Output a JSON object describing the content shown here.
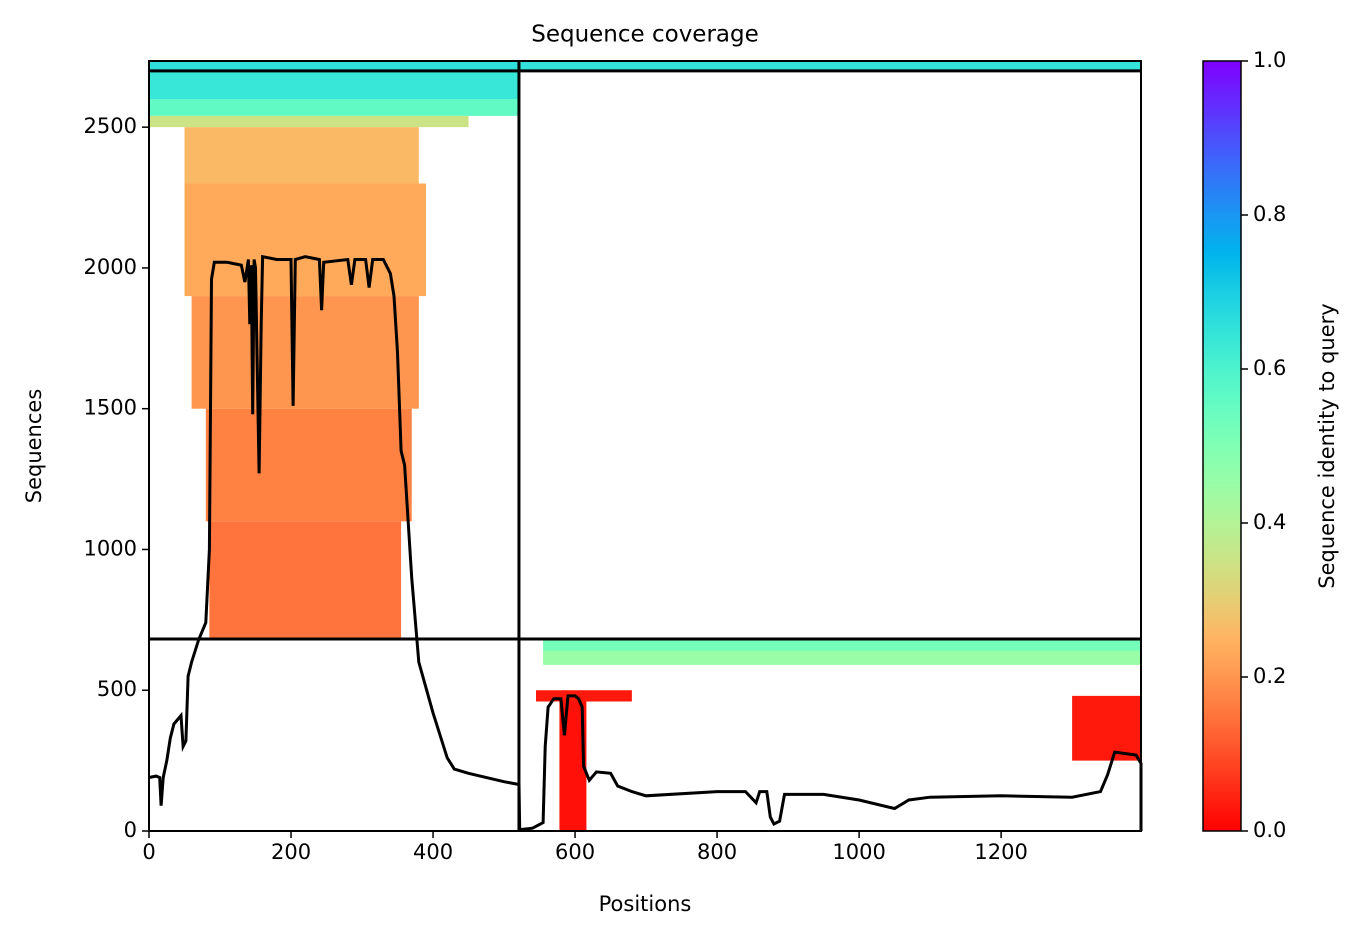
{
  "chart_data": {
    "type": "coverage",
    "title": "Sequence coverage",
    "xlabel": "Positions",
    "ylabel": "Sequences",
    "colorbar_label": "Sequence identity to query",
    "colormap": "rainbow_r",
    "xlim": [
      0,
      1397
    ],
    "ylim": [
      0,
      2735
    ],
    "xticks": [
      0,
      200,
      400,
      600,
      800,
      1000,
      1200
    ],
    "yticks": [
      0,
      500,
      1000,
      1500,
      2000,
      2500
    ],
    "clim": [
      0,
      1
    ],
    "cticks": [
      {
        "value": 0,
        "label": "0.0"
      },
      {
        "value": 0.2,
        "label": "0.2"
      },
      {
        "value": 0.4,
        "label": "0.4"
      },
      {
        "value": 0.6,
        "label": "0.6"
      },
      {
        "value": 0.8,
        "label": "0.8"
      },
      {
        "value": 1,
        "label": "1.0"
      }
    ],
    "boundaries_x": [
      521
    ],
    "boundaries_y": [
      682,
      2700
    ],
    "blocks": [
      {
        "x": [
          0,
          521
        ],
        "y": [
          2600,
          2700
        ],
        "identity": 0.64
      },
      {
        "x": [
          0,
          521
        ],
        "y": [
          2540,
          2600
        ],
        "identity": 0.56
      },
      {
        "x": [
          0,
          450
        ],
        "y": [
          2500,
          2540
        ],
        "identity": 0.35
      },
      {
        "x": [
          521,
          1397
        ],
        "y": [
          2700,
          2735
        ],
        "identity": 0.65
      },
      {
        "x": [
          0,
          521
        ],
        "y": [
          2700,
          2735
        ],
        "identity": 0.66
      },
      {
        "x": [
          50,
          380
        ],
        "y": [
          2300,
          2500
        ],
        "identity": 0.26
      },
      {
        "x": [
          50,
          390
        ],
        "y": [
          1900,
          2300
        ],
        "identity": 0.23
      },
      {
        "x": [
          60,
          380
        ],
        "y": [
          1500,
          1900
        ],
        "identity": 0.2
      },
      {
        "x": [
          80,
          370
        ],
        "y": [
          1100,
          1500
        ],
        "identity": 0.17
      },
      {
        "x": [
          85,
          355
        ],
        "y": [
          682,
          1100
        ],
        "identity": 0.15
      },
      {
        "x": [
          555,
          1397
        ],
        "y": [
          590,
          682
        ],
        "identity": 0.45
      },
      {
        "x": [
          555,
          1397
        ],
        "y": [
          640,
          682
        ],
        "identity": 0.52
      },
      {
        "x": [
          545,
          680
        ],
        "y": [
          460,
          500
        ],
        "identity": 0.03
      },
      {
        "x": [
          578,
          616
        ],
        "y": [
          0,
          460
        ],
        "identity": 0.02
      },
      {
        "x": [
          1300,
          1397
        ],
        "y": [
          250,
          480
        ],
        "identity": 0.03
      }
    ],
    "x": [
      0,
      10,
      15,
      17,
      20,
      25,
      30,
      35,
      45,
      48,
      52,
      55,
      60,
      70,
      80,
      85,
      88,
      92,
      110,
      130,
      135,
      140,
      142,
      144,
      146,
      148,
      150,
      155,
      158,
      160,
      180,
      200,
      203,
      206,
      220,
      240,
      243,
      246,
      280,
      285,
      290,
      305,
      310,
      315,
      330,
      340,
      345,
      350,
      355,
      360,
      370,
      380,
      400,
      420,
      430,
      450,
      500,
      521,
      522,
      540,
      555,
      558,
      562,
      570,
      580,
      585,
      590,
      600,
      605,
      610,
      612,
      620,
      630,
      650,
      660,
      680,
      700,
      800,
      840,
      855,
      860,
      870,
      875,
      880,
      888,
      895,
      950,
      1000,
      1050,
      1070,
      1100,
      1200,
      1300,
      1340,
      1350,
      1360,
      1390,
      1397,
      1397
    ],
    "values": [
      190,
      195,
      190,
      90,
      190,
      250,
      330,
      380,
      410,
      300,
      320,
      550,
      600,
      680,
      740,
      1000,
      1960,
      2020,
      2020,
      2010,
      1950,
      2030,
      1800,
      2010,
      1480,
      2030,
      2000,
      1270,
      1800,
      2040,
      2030,
      2030,
      1510,
      2030,
      2040,
      2030,
      1850,
      2020,
      2030,
      1940,
      2030,
      2030,
      1930,
      2030,
      2030,
      1980,
      1900,
      1700,
      1350,
      1300,
      900,
      600,
      420,
      260,
      220,
      205,
      175,
      165,
      5,
      10,
      30,
      300,
      440,
      470,
      470,
      340,
      480,
      480,
      470,
      440,
      230,
      180,
      210,
      205,
      160,
      140,
      125,
      140,
      140,
      100,
      140,
      140,
      50,
      25,
      35,
      130,
      130,
      110,
      80,
      110,
      120,
      125,
      120,
      140,
      200,
      280,
      270,
      240,
      0
    ]
  }
}
